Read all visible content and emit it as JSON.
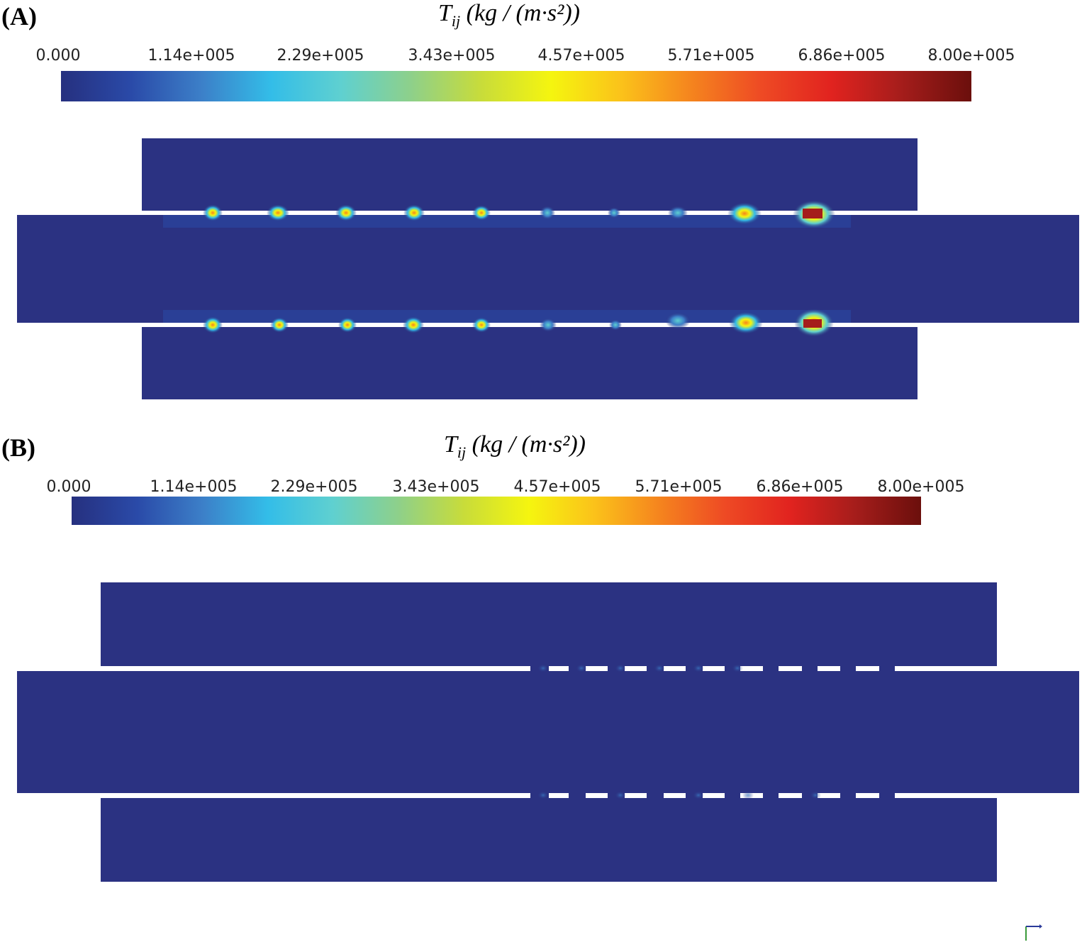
{
  "colormap": [
    "#26307f",
    "#2a4aa8",
    "#3c7fc8",
    "#33bde8",
    "#5fd0d0",
    "#8ed08a",
    "#c8dc3a",
    "#f5f50f",
    "#fbc21a",
    "#f5841e",
    "#ee4a24",
    "#e1231f",
    "#a51d1b",
    "#6b0f0c"
  ],
  "background_color": "#2b3282",
  "panels": [
    {
      "label": "(A)",
      "title_symbol": "T",
      "title_subscript": "ij",
      "title_unit": "(kg / (m·s²))",
      "colorbar_ticks": [
        "0.000",
        "1.14e+005",
        "2.29e+005",
        "3.43e+005",
        "4.57e+005",
        "5.71e+005",
        "6.86e+005",
        "8.00e+005"
      ],
      "colorbar_range": [
        0,
        800000
      ]
    },
    {
      "label": "(B)",
      "title_symbol": "T",
      "title_subscript": "ij",
      "title_unit": "(kg / (m·s²))",
      "colorbar_ticks": [
        "0.000",
        "1.14e+005",
        "2.29e+005",
        "3.43e+005",
        "4.57e+005",
        "5.71e+005",
        "6.86e+005",
        "8.00e+005"
      ],
      "colorbar_range": [
        0,
        800000
      ]
    }
  ]
}
